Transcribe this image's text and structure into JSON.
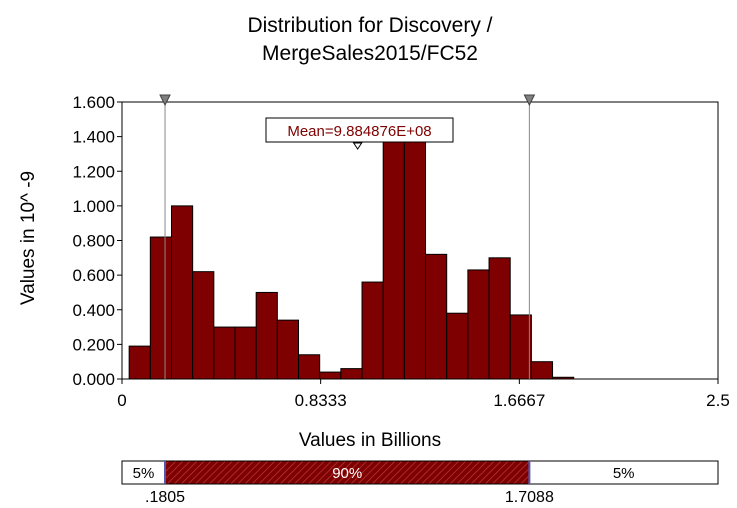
{
  "chart_data": {
    "type": "bar",
    "title_lines": [
      "Distribution for Discovery /",
      "MergeSales2015/FC52"
    ],
    "xlabel": "Values in Billions",
    "ylabel": "Values in 10^ -9",
    "xlim": [
      0,
      2.5
    ],
    "ylim": [
      0,
      1.6
    ],
    "x_ticks": [
      "0",
      "0.8333",
      "1.6667",
      "2.5"
    ],
    "y_ticks": [
      "0.000",
      "0.200",
      "0.400",
      "0.600",
      "0.800",
      "1.000",
      "1.200",
      "1.400",
      "1.600"
    ],
    "bin_start": 0.03,
    "bin_width": 0.0888,
    "values": [
      0.19,
      0.82,
      1.0,
      0.62,
      0.3,
      0.3,
      0.5,
      0.34,
      0.14,
      0.04,
      0.06,
      0.56,
      1.4,
      1.4,
      0.72,
      0.38,
      0.63,
      0.7,
      0.37,
      0.1,
      0.01
    ],
    "bar_color": "#7f0000",
    "mean_label": "Mean=9.884876E+08",
    "mean_value": 0.9884876,
    "markers": [
      0.1805,
      1.7088
    ],
    "percentile_bar": {
      "segments": [
        "5%",
        "90%",
        "5%"
      ],
      "labels": [
        ".1805",
        "1.7088"
      ]
    }
  }
}
